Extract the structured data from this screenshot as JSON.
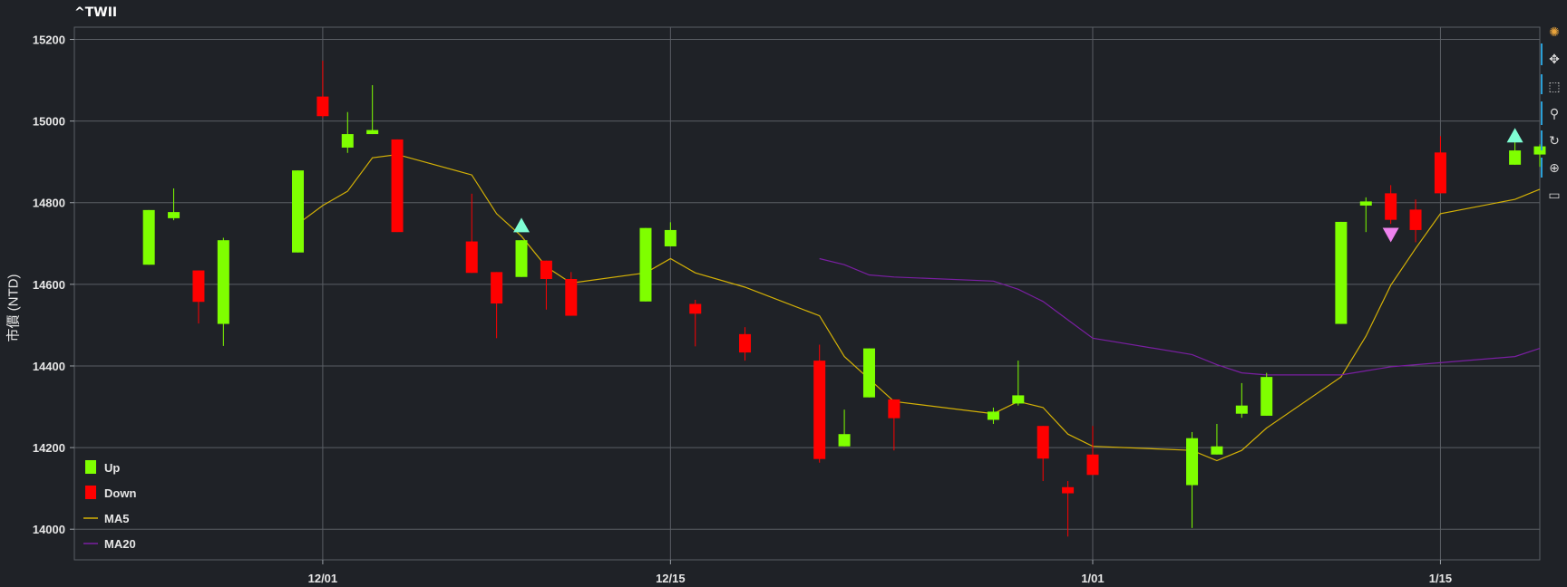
{
  "title": "^TWII",
  "ylabel": "市價 (NTD)",
  "colors": {
    "up": "#7fff00",
    "down": "#ff0000",
    "ma5": "#d4b106",
    "ma20": "#7a1fa2",
    "grid": "#5a5e64",
    "bg": "#1f2227",
    "up_marker": "#7fffd4",
    "down_marker": "#ee82ee"
  },
  "toolbar": [
    "bokeh-logo-icon",
    "pan-icon",
    "box-zoom-icon",
    "wheel-zoom-icon",
    "reset-icon",
    "crosshair-icon",
    "hover-icon"
  ],
  "chart_data": {
    "type": "candlestick",
    "title": "^TWII",
    "ylabel": "市價 (NTD)",
    "ylim": [
      13925,
      15230
    ],
    "xlim": [
      "2020-11-21",
      "2021-01-19"
    ],
    "grid": true,
    "legend_position": "bottom-left",
    "xticks": [
      {
        "date": "2020-12-01",
        "label": "12/01"
      },
      {
        "date": "2020-12-15",
        "label": "12/15"
      },
      {
        "date": "2021-01-01",
        "label": "1/01"
      },
      {
        "date": "2021-01-15",
        "label": "1/15"
      }
    ],
    "yticks": [
      14000,
      14200,
      14400,
      14600,
      14800,
      15000,
      15200
    ],
    "legend": [
      {
        "label": "Up",
        "kind": "box",
        "color": "#7fff00"
      },
      {
        "label": "Down",
        "kind": "box",
        "color": "#ff0000"
      },
      {
        "label": "MA5",
        "kind": "line",
        "color": "#d4b106"
      },
      {
        "label": "MA20",
        "kind": "line",
        "color": "#7a1fa2"
      }
    ],
    "candles": [
      {
        "date": "2020-11-24",
        "open": 14648,
        "high": 14782,
        "low": 14648,
        "close": 14782
      },
      {
        "date": "2020-11-25",
        "open": 14762,
        "high": 14835,
        "low": 14757,
        "close": 14777
      },
      {
        "date": "2020-11-26",
        "open": 14634,
        "high": 14634,
        "low": 14504,
        "close": 14557
      },
      {
        "date": "2020-11-27",
        "open": 14503,
        "high": 14714,
        "low": 14449,
        "close": 14708
      },
      {
        "date": "2020-11-30",
        "open": 14678,
        "high": 14879,
        "low": 14678,
        "close": 14879
      },
      {
        "date": "2020-12-01",
        "open": 15060,
        "high": 15148,
        "low": 15008,
        "close": 15012
      },
      {
        "date": "2020-12-02",
        "open": 14935,
        "high": 15022,
        "low": 14922,
        "close": 14968
      },
      {
        "date": "2020-12-03",
        "open": 14968,
        "high": 15088,
        "low": 14968,
        "close": 14978
      },
      {
        "date": "2020-12-04",
        "open": 14955,
        "high": 14955,
        "low": 14728,
        "close": 14728
      },
      {
        "date": "2020-12-07",
        "open": 14705,
        "high": 14822,
        "low": 14628,
        "close": 14628
      },
      {
        "date": "2020-12-08",
        "open": 14630,
        "high": 14630,
        "low": 14468,
        "close": 14553
      },
      {
        "date": "2020-12-09",
        "open": 14618,
        "high": 14708,
        "low": 14618,
        "close": 14708
      },
      {
        "date": "2020-12-10",
        "open": 14658,
        "high": 14658,
        "low": 14538,
        "close": 14613
      },
      {
        "date": "2020-12-11",
        "open": 14613,
        "high": 14630,
        "low": 14523,
        "close": 14523
      },
      {
        "date": "2020-12-14",
        "open": 14558,
        "high": 14738,
        "low": 14558,
        "close": 14738
      },
      {
        "date": "2020-12-15",
        "open": 14693,
        "high": 14752,
        "low": 14693,
        "close": 14733
      },
      {
        "date": "2020-12-16",
        "open": 14552,
        "high": 14562,
        "low": 14448,
        "close": 14528
      },
      {
        "date": "2020-12-18",
        "open": 14478,
        "high": 14495,
        "low": 14413,
        "close": 14433
      },
      {
        "date": "2020-12-21",
        "open": 14413,
        "high": 14452,
        "low": 14163,
        "close": 14172
      },
      {
        "date": "2020-12-22",
        "open": 14203,
        "high": 14293,
        "low": 14203,
        "close": 14233
      },
      {
        "date": "2020-12-23",
        "open": 14323,
        "high": 14443,
        "low": 14323,
        "close": 14443
      },
      {
        "date": "2020-12-24",
        "open": 14318,
        "high": 14318,
        "low": 14193,
        "close": 14272
      },
      {
        "date": "2020-12-28",
        "open": 14268,
        "high": 14298,
        "low": 14258,
        "close": 14288
      },
      {
        "date": "2020-12-29",
        "open": 14308,
        "high": 14413,
        "low": 14303,
        "close": 14328
      },
      {
        "date": "2020-12-30",
        "open": 14253,
        "high": 14253,
        "low": 14118,
        "close": 14173
      },
      {
        "date": "2020-12-31",
        "open": 14103,
        "high": 14118,
        "low": 13982,
        "close": 14088
      },
      {
        "date": "2021-01-01",
        "open": 14183,
        "high": 14253,
        "low": 14133,
        "close": 14133
      },
      {
        "date": "2021-01-05",
        "open": 14108,
        "high": 14238,
        "low": 14003,
        "close": 14223
      },
      {
        "date": "2021-01-06",
        "open": 14183,
        "high": 14258,
        "low": 14183,
        "close": 14203
      },
      {
        "date": "2021-01-07",
        "open": 14283,
        "high": 14358,
        "low": 14273,
        "close": 14303
      },
      {
        "date": "2021-01-08",
        "open": 14278,
        "high": 14383,
        "low": 14278,
        "close": 14373
      },
      {
        "date": "2021-01-11",
        "open": 14503,
        "high": 14753,
        "low": 14503,
        "close": 14753
      },
      {
        "date": "2021-01-12",
        "open": 14793,
        "high": 14813,
        "low": 14728,
        "close": 14803
      },
      {
        "date": "2021-01-13",
        "open": 14823,
        "high": 14843,
        "low": 14748,
        "close": 14758
      },
      {
        "date": "2021-01-14",
        "open": 14783,
        "high": 14808,
        "low": 14703,
        "close": 14733
      },
      {
        "date": "2021-01-15",
        "open": 14923,
        "high": 14963,
        "low": 14823,
        "close": 14823
      },
      {
        "date": "2021-01-18",
        "open": 14893,
        "high": 14953,
        "low": 14893,
        "close": 14928
      },
      {
        "date": "2021-01-19",
        "open": 14918,
        "high": 14943,
        "low": 14888,
        "close": 14938
      }
    ],
    "series": [
      {
        "name": "MA5",
        "type": "line",
        "points": [
          [
            "2020-11-30",
            14748
          ],
          [
            "2020-12-01",
            14793
          ],
          [
            "2020-12-02",
            14828
          ],
          [
            "2020-12-03",
            14910
          ],
          [
            "2020-12-04",
            14918
          ],
          [
            "2020-12-07",
            14868
          ],
          [
            "2020-12-08",
            14773
          ],
          [
            "2020-12-09",
            14718
          ],
          [
            "2020-12-10",
            14643
          ],
          [
            "2020-12-11",
            14603
          ],
          [
            "2020-12-14",
            14628
          ],
          [
            "2020-12-15",
            14663
          ],
          [
            "2020-12-16",
            14628
          ],
          [
            "2020-12-18",
            14593
          ],
          [
            "2020-12-21",
            14523
          ],
          [
            "2020-12-22",
            14423
          ],
          [
            "2020-12-23",
            14368
          ],
          [
            "2020-12-24",
            14313
          ],
          [
            "2020-12-28",
            14283
          ],
          [
            "2020-12-29",
            14313
          ],
          [
            "2020-12-30",
            14298
          ],
          [
            "2020-12-31",
            14233
          ],
          [
            "2021-01-01",
            14203
          ],
          [
            "2021-01-05",
            14193
          ],
          [
            "2021-01-06",
            14168
          ],
          [
            "2021-01-07",
            14193
          ],
          [
            "2021-01-08",
            14248
          ],
          [
            "2021-01-11",
            14373
          ],
          [
            "2021-01-12",
            14473
          ],
          [
            "2021-01-13",
            14598
          ],
          [
            "2021-01-14",
            14688
          ],
          [
            "2021-01-15",
            14773
          ],
          [
            "2021-01-18",
            14808
          ],
          [
            "2021-01-19",
            14833
          ]
        ]
      },
      {
        "name": "MA20",
        "type": "line",
        "points": [
          [
            "2020-12-21",
            14663
          ],
          [
            "2020-12-22",
            14648
          ],
          [
            "2020-12-23",
            14623
          ],
          [
            "2020-12-24",
            14618
          ],
          [
            "2020-12-28",
            14608
          ],
          [
            "2020-12-29",
            14588
          ],
          [
            "2020-12-30",
            14558
          ],
          [
            "2020-12-31",
            14513
          ],
          [
            "2021-01-01",
            14468
          ],
          [
            "2021-01-05",
            14428
          ],
          [
            "2021-01-06",
            14403
          ],
          [
            "2021-01-07",
            14383
          ],
          [
            "2021-01-08",
            14378
          ],
          [
            "2021-01-11",
            14378
          ],
          [
            "2021-01-12",
            14388
          ],
          [
            "2021-01-13",
            14398
          ],
          [
            "2021-01-14",
            14403
          ],
          [
            "2021-01-18",
            14423
          ],
          [
            "2021-01-19",
            14443
          ]
        ]
      }
    ],
    "signals": [
      {
        "date": "2020-12-09",
        "value": 14743,
        "kind": "up"
      },
      {
        "date": "2021-01-13",
        "value": 14723,
        "kind": "down"
      },
      {
        "date": "2021-01-18",
        "value": 14963,
        "kind": "up"
      }
    ]
  }
}
